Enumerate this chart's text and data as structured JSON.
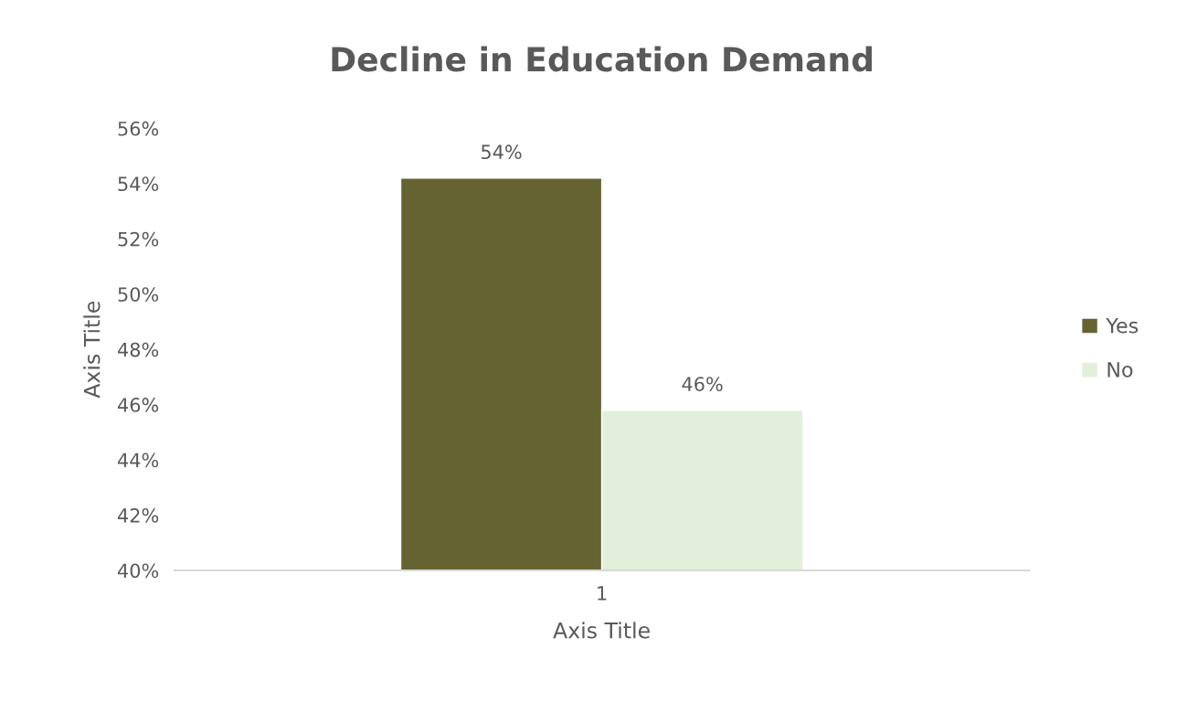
{
  "chart_data": {
    "type": "bar",
    "title": "Decline in Education Demand",
    "xlabel": "Axis Title",
    "ylabel": "Axis Title",
    "categories": [
      "1"
    ],
    "series": [
      {
        "name": "Yes",
        "color": "#666333",
        "values": [
          54.2
        ],
        "value_labels": [
          "54%"
        ]
      },
      {
        "name": "No",
        "color": "#e2efda",
        "values": [
          45.8
        ],
        "value_labels": [
          "46%"
        ]
      }
    ],
    "ylim": [
      40,
      56
    ],
    "yticks": [
      {
        "value": 40,
        "label": "40%"
      },
      {
        "value": 42,
        "label": "42%"
      },
      {
        "value": 44,
        "label": "44%"
      },
      {
        "value": 46,
        "label": "46%"
      },
      {
        "value": 48,
        "label": "48%"
      },
      {
        "value": 50,
        "label": "50%"
      },
      {
        "value": 52,
        "label": "52%"
      },
      {
        "value": 54,
        "label": "54%"
      },
      {
        "value": 56,
        "label": "56%"
      }
    ],
    "grid": false,
    "legend": "right"
  }
}
